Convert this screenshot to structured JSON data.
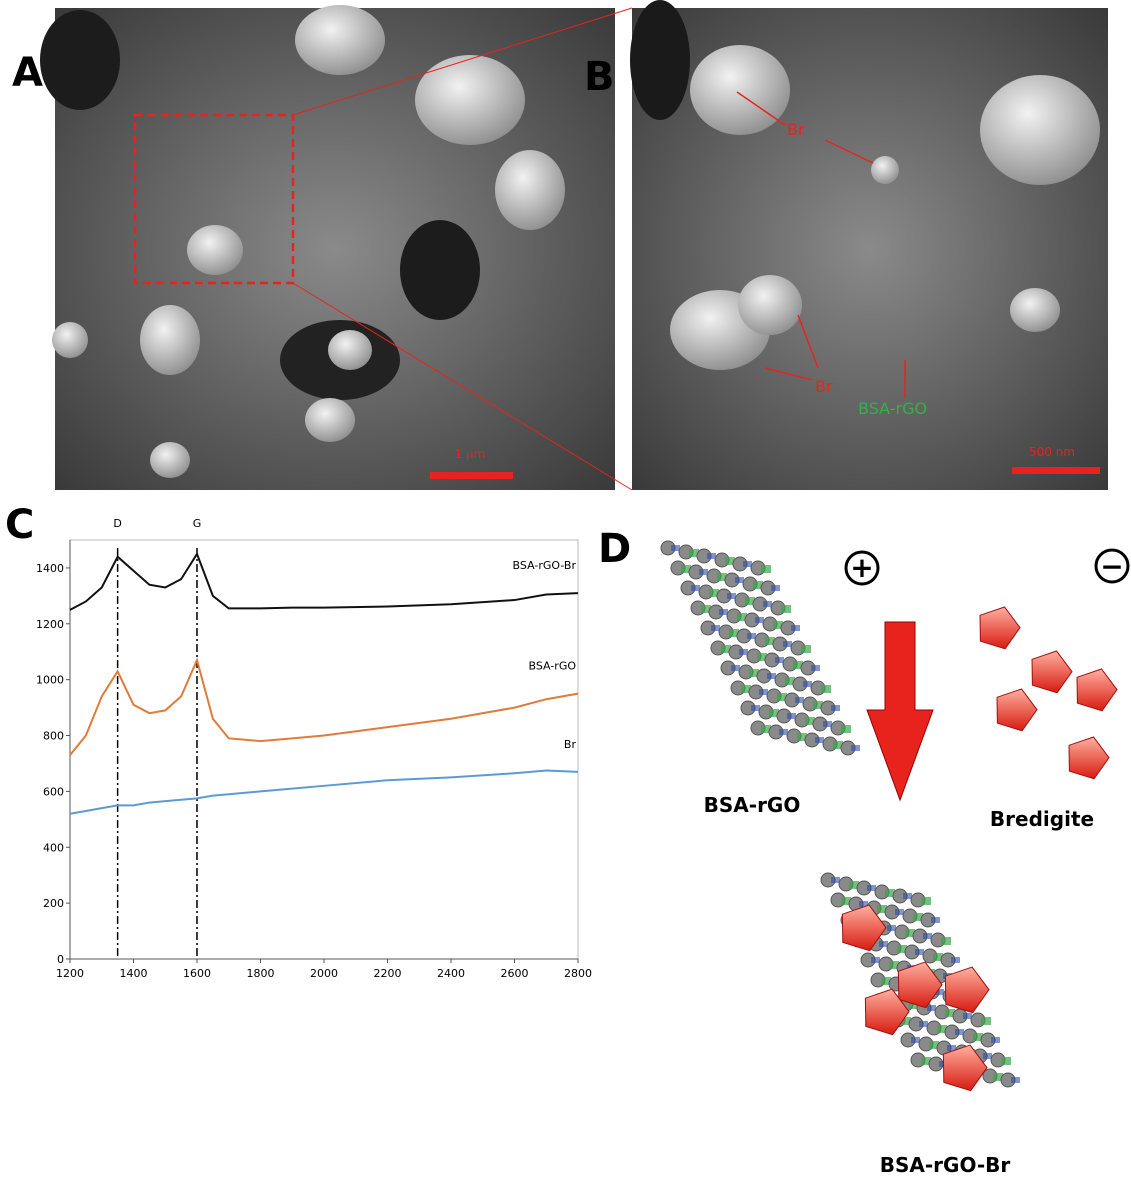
{
  "panels": {
    "a": {
      "label": "A",
      "scale_bar": "1 µm"
    },
    "b": {
      "label": "B",
      "scale_bar": "500 nm",
      "annotations": [
        "Br",
        "Br",
        "BSA-rGO"
      ]
    },
    "c": {
      "label": "C"
    },
    "d": {
      "label": "D",
      "charges": [
        "+",
        "−"
      ],
      "names": [
        "BSA-rGO",
        "Bredigite",
        "BSA-rGO-Br"
      ]
    }
  },
  "chart_data": {
    "type": "line",
    "x": [
      1200,
      1250,
      1300,
      1350,
      1400,
      1450,
      1500,
      1550,
      1600,
      1650,
      1700,
      1800,
      1900,
      2000,
      2200,
      2400,
      2600,
      2700,
      2800
    ],
    "series": [
      {
        "name": "BSA-rGO-Br",
        "color": "#111111",
        "values": [
          1250,
          1280,
          1330,
          1440,
          1390,
          1340,
          1330,
          1360,
          1450,
          1300,
          1255,
          1255,
          1258,
          1258,
          1262,
          1270,
          1285,
          1305,
          1310
        ]
      },
      {
        "name": "BSA-rGO",
        "color": "#e07b39",
        "values": [
          730,
          800,
          940,
          1030,
          910,
          880,
          890,
          940,
          1070,
          860,
          790,
          780,
          790,
          800,
          830,
          860,
          900,
          930,
          950
        ]
      },
      {
        "name": "Br",
        "color": "#5b9bd5",
        "values": [
          520,
          530,
          540,
          550,
          550,
          560,
          565,
          570,
          575,
          585,
          590,
          600,
          610,
          620,
          640,
          650,
          665,
          675,
          670
        ]
      }
    ],
    "peak_lines": [
      {
        "label": "D",
        "x": 1350
      },
      {
        "label": "G",
        "x": 1600
      }
    ],
    "xlim": [
      1200,
      2800
    ],
    "xticks": [
      1200,
      1400,
      1600,
      1800,
      2000,
      2200,
      2400,
      2600,
      2800
    ],
    "ylim": [
      0,
      1500
    ],
    "yticks": [
      0,
      200,
      400,
      600,
      800,
      1000,
      1200,
      1400
    ]
  }
}
